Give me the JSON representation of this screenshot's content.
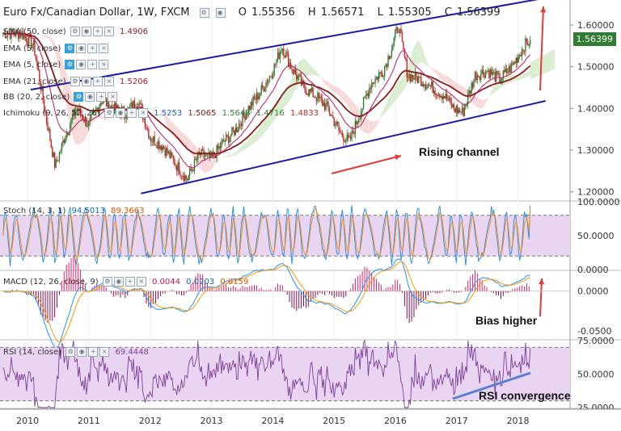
{
  "header": {
    "symbol": "Euro Fx/Canadian Dollar, 1W, FXCM",
    "ohlc": [
      {
        "label": "O",
        "value": "1.55356"
      },
      {
        "label": "H",
        "value": "1.56571"
      },
      {
        "label": "L",
        "value": "1.55305"
      },
      {
        "label": "C",
        "value": "1.56399"
      }
    ]
  },
  "last_price": "1.56399",
  "indicators": {
    "sma": {
      "label": "SMA (50, close)",
      "value": "1.4906"
    },
    "ema": {
      "label": "EMA (5, close)"
    },
    "ema21": {
      "label": "EMA (21, close)",
      "value": "1.5206"
    },
    "bb": {
      "label": "BB (20, 2, close)"
    },
    "ichimoku": {
      "label": "Ichimoku (9, 26, 52, 26)",
      "values": [
        "1.5253",
        "1.5065",
        "1.5648",
        "1.4716",
        "1.4833"
      ]
    },
    "stoch": {
      "label": "Stoch (14, 3, 1)",
      "values": [
        "94.5013",
        "89.3663"
      ]
    },
    "macd": {
      "label": "MACD (12, 26, close, 9)",
      "values": [
        "0.0044",
        "0.0203",
        "0.0159"
      ]
    },
    "rsi": {
      "label": "RSI (14, close)",
      "value": "69.4448"
    }
  },
  "annotations": {
    "channel": "Rising channel",
    "bias": "Bias higher",
    "rsi": "RSI convergence"
  },
  "colors": {
    "up": "#2e7d32",
    "down": "#c62828",
    "channel": "#1a1aa8",
    "arrow": "#e53935",
    "sma": "#8b1a1a",
    "cloud_green": "#cfe8c6",
    "cloud_red": "#f6cfcf",
    "stoch_band": "#e9d5f2",
    "rsi_band": "#e9d5f2",
    "macd_line": "#2196f3",
    "macd_signal": "#ff9800",
    "osc_line": "#7e3f98"
  },
  "chart_data": [
    {
      "type": "line",
      "title": "Euro Fx/Canadian Dollar, 1W, FXCM",
      "x": [
        2009.6,
        2009.9,
        2010.1,
        2010.3,
        2010.45,
        2010.6,
        2010.8,
        2011.0,
        2011.2,
        2011.4,
        2011.6,
        2011.8,
        2012.0,
        2012.2,
        2012.4,
        2012.6,
        2012.8,
        2013.0,
        2013.2,
        2013.4,
        2013.6,
        2013.8,
        2014.0,
        2014.15,
        2014.3,
        2014.5,
        2014.7,
        2014.9,
        2015.1,
        2015.25,
        2015.4,
        2015.6,
        2015.8,
        2015.95,
        2016.05,
        2016.2,
        2016.4,
        2016.6,
        2016.8,
        2016.95,
        2017.1,
        2017.3,
        2017.5,
        2017.7,
        2017.9,
        2018.1,
        2018.2
      ],
      "series": [
        {
          "values": [
            1.58,
            1.58,
            1.55,
            1.38,
            1.26,
            1.33,
            1.4,
            1.36,
            1.42,
            1.4,
            1.39,
            1.42,
            1.33,
            1.31,
            1.27,
            1.23,
            1.29,
            1.28,
            1.32,
            1.35,
            1.4,
            1.44,
            1.49,
            1.55,
            1.5,
            1.45,
            1.43,
            1.4,
            1.34,
            1.32,
            1.38,
            1.46,
            1.49,
            1.55,
            1.6,
            1.48,
            1.47,
            1.45,
            1.43,
            1.4,
            1.39,
            1.48,
            1.49,
            1.47,
            1.5,
            1.55,
            1.564
          ]
        }
      ],
      "ylim": [
        1.18,
        1.66
      ],
      "yticks": [
        "1.20000",
        "1.30000",
        "1.40000",
        "1.50000",
        "1.60000"
      ],
      "xticks": [
        "2010",
        "2011",
        "2012",
        "2013",
        "2014",
        "2015",
        "2016",
        "2017",
        "2018"
      ],
      "xlim": [
        2009.55,
        2018.85
      ]
    },
    {
      "type": "line",
      "title": "Stoch (14, 3, 1)",
      "ylim": [
        0,
        100
      ],
      "yticks": [
        "0.0000",
        "50.0000",
        "100.0000"
      ],
      "series": [
        {
          "values": [
            94.5013
          ]
        },
        {
          "values": [
            89.3663
          ]
        }
      ]
    },
    {
      "type": "line",
      "title": "MACD (12, 26, close, 9)",
      "ylim": [
        -0.06,
        0.025
      ],
      "yticks": [
        "-0.0500",
        "0.0000"
      ],
      "series": [
        {
          "values": [
            0.0044
          ]
        },
        {
          "values": [
            0.0203
          ]
        },
        {
          "values": [
            0.0159
          ]
        }
      ]
    },
    {
      "type": "line",
      "title": "RSI (14, close)",
      "ylim": [
        25,
        75
      ],
      "yticks": [
        "25.0000",
        "50.0000",
        "75.0000"
      ],
      "series": [
        {
          "values": [
            69.4448
          ]
        }
      ]
    }
  ]
}
